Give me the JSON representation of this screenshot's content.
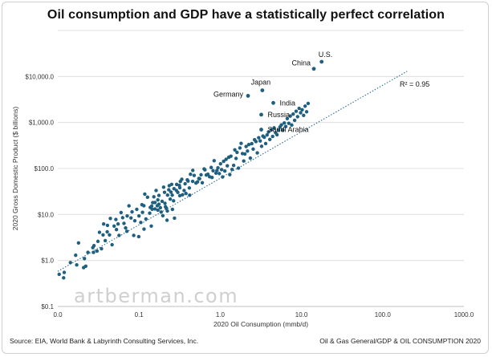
{
  "chart_data": {
    "type": "scatter",
    "title": "Oil consumption and GDP have a statistically perfect correlation",
    "xlabel": "2020 Oil Consumption (mmb/d)",
    "ylabel": "2020 Gross Domestic Product ($ billions)",
    "x_scale": "log",
    "y_scale": "log",
    "xlim": [
      0.01,
      1000
    ],
    "ylim": [
      0.1,
      100000
    ],
    "x_ticks": [
      "0.0",
      "0.1",
      "1.0",
      "10.0",
      "100.0",
      "1000.0"
    ],
    "y_ticks": [
      "$0.1",
      "$1.0",
      "$10.0",
      "$100.0",
      "$1,000.0",
      "$10,000.0"
    ],
    "grid": "horizontal",
    "marker_color": "#1f5f7f",
    "trendline": {
      "style": "dotted",
      "color": "#2a6f8f",
      "x": [
        0.01,
        200
      ],
      "y": [
        0.58,
        13000
      ]
    },
    "r_squared_label": "R² = 0.95",
    "labeled_points": [
      {
        "label": "U.S.",
        "x": 17.7,
        "y": 20900
      },
      {
        "label": "China",
        "x": 14.2,
        "y": 14700
      },
      {
        "label": "Japan",
        "x": 3.3,
        "y": 5000
      },
      {
        "label": "Germany",
        "x": 2.2,
        "y": 3800
      },
      {
        "label": "India",
        "x": 4.5,
        "y": 2660
      },
      {
        "label": "Russia",
        "x": 3.2,
        "y": 1480
      },
      {
        "label": "Saudi Arabia",
        "x": 3.2,
        "y": 700
      }
    ],
    "points": [
      [
        0.0104,
        0.5
      ],
      [
        0.0118,
        0.42
      ],
      [
        0.012,
        0.55
      ],
      [
        0.0143,
        0.9
      ],
      [
        0.0166,
        1.3
      ],
      [
        0.0171,
        0.8
      ],
      [
        0.018,
        2.4
      ],
      [
        0.0208,
        0.7
      ],
      [
        0.0213,
        1.1
      ],
      [
        0.0221,
        0.75
      ],
      [
        0.0235,
        1.5
      ],
      [
        0.027,
        1.9
      ],
      [
        0.0279,
        2.1
      ],
      [
        0.0275,
        1.5
      ],
      [
        0.0304,
        1.6
      ],
      [
        0.0312,
        2.6
      ],
      [
        0.0326,
        4.1
      ],
      [
        0.0345,
        1.8
      ],
      [
        0.0361,
        3.6
      ],
      [
        0.0367,
        6.2
      ],
      [
        0.0384,
        2.7
      ],
      [
        0.0409,
        5.8
      ],
      [
        0.0406,
        4.2
      ],
      [
        0.0433,
        3.6
      ],
      [
        0.0444,
        8.2
      ],
      [
        0.0466,
        2.2
      ],
      [
        0.0494,
        5.6
      ],
      [
        0.0519,
        7.8
      ],
      [
        0.0528,
        4.7
      ],
      [
        0.0552,
        6.2
      ],
      [
        0.0568,
        3.5
      ],
      [
        0.0601,
        11
      ],
      [
        0.0629,
        8.5
      ],
      [
        0.0653,
        6.4
      ],
      [
        0.0684,
        5.1
      ],
      [
        0.0715,
        9.3
      ],
      [
        0.0709,
        4.3
      ],
      [
        0.0752,
        15.4
      ],
      [
        0.0797,
        8.4
      ],
      [
        0.0821,
        11.4
      ],
      [
        0.0861,
        3.5
      ],
      [
        0.0888,
        7.3
      ],
      [
        0.0939,
        12.9
      ],
      [
        0.0992,
        3.3
      ],
      [
        0.0999,
        9.3
      ],
      [
        0.1052,
        6.7
      ],
      [
        0.1087,
        16.3
      ],
      [
        0.1105,
        11.1
      ],
      [
        0.1148,
        15.5
      ],
      [
        0.1153,
        4.8
      ],
      [
        0.1178,
        27.7
      ],
      [
        0.1217,
        8
      ],
      [
        0.1273,
        23.7
      ],
      [
        0.1354,
        10.7
      ],
      [
        0.1376,
        14.2
      ],
      [
        0.1432,
        15.2
      ],
      [
        0.1416,
        5.6
      ],
      [
        0.1453,
        13
      ],
      [
        0.1475,
        18.1
      ],
      [
        0.1523,
        24.2
      ],
      [
        0.1573,
        13.2
      ],
      [
        0.1573,
        18.2
      ],
      [
        0.1624,
        33.2
      ],
      [
        0.1679,
        15.5
      ],
      [
        0.1707,
        20.7
      ],
      [
        0.1707,
        12.4
      ],
      [
        0.1759,
        16.7
      ],
      [
        0.1759,
        26
      ],
      [
        0.1831,
        14
      ],
      [
        0.1871,
        11.3
      ],
      [
        0.1925,
        19.3
      ],
      [
        0.1964,
        9.4
      ],
      [
        0.2009,
        39.2
      ],
      [
        0.2062,
        30.3
      ],
      [
        0.2086,
        17.5
      ],
      [
        0.2119,
        14.7
      ],
      [
        0.2163,
        13.8
      ],
      [
        0.2212,
        7.5
      ],
      [
        0.2233,
        11.9
      ],
      [
        0.2248,
        26.4
      ],
      [
        0.2326,
        34.4
      ],
      [
        0.2355,
        42.2
      ],
      [
        0.2423,
        21.6
      ],
      [
        0.2474,
        30.7
      ],
      [
        0.2524,
        45.2
      ],
      [
        0.2563,
        26.3
      ],
      [
        0.2579,
        12.9
      ],
      [
        0.2663,
        19.8
      ],
      [
        0.2697,
        36.4
      ],
      [
        0.2734,
        8.3
      ],
      [
        0.2888,
        33.2
      ],
      [
        0.2906,
        45
      ],
      [
        0.3003,
        30.2
      ],
      [
        0.3137,
        42.8
      ],
      [
        0.3178,
        25.6
      ],
      [
        0.3181,
        38.2
      ],
      [
        0.3229,
        52.3
      ],
      [
        0.3364,
        58.2
      ],
      [
        0.3433,
        26.8
      ],
      [
        0.3592,
        33.2
      ],
      [
        0.3693,
        46.6
      ],
      [
        0.3785,
        28.6
      ],
      [
        0.3933,
        56.6
      ],
      [
        0.4014,
        53.3
      ],
      [
        0.4164,
        37.7
      ],
      [
        0.4204,
        26.2
      ],
      [
        0.4305,
        74.9
      ],
      [
        0.4577,
        52.5
      ],
      [
        0.4597,
        90.9
      ],
      [
        0.4773,
        70.6
      ],
      [
        0.5027,
        48.2
      ],
      [
        0.5259,
        51.2
      ],
      [
        0.5457,
        60.7
      ],
      [
        0.5569,
        59.9
      ],
      [
        0.5809,
        72.9
      ],
      [
        0.6014,
        48.9
      ],
      [
        0.6337,
        97.7
      ],
      [
        0.6474,
        93.3
      ],
      [
        0.6731,
        71.9
      ],
      [
        0.7049,
        74.8
      ],
      [
        0.7382,
        66.2
      ],
      [
        0.7743,
        105.1
      ],
      [
        0.7929,
        63.8
      ],
      [
        0.8168,
        89.4
      ],
      [
        0.8411,
        147.7
      ],
      [
        0.8862,
        79
      ],
      [
        0.9108,
        89.7
      ],
      [
        0.9368,
        103.2
      ],
      [
        0.9745,
        77.4
      ],
      [
        1.0089,
        126.4
      ],
      [
        1.0395,
        94.5
      ],
      [
        1.0703,
        65.4
      ],
      [
        1.1013,
        143.4
      ],
      [
        1.1397,
        87.9
      ],
      [
        1.1798,
        158.3
      ],
      [
        1.2216,
        114.4
      ],
      [
        1.2736,
        175.4
      ],
      [
        1.3118,
        73.6
      ],
      [
        1.3538,
        185.3
      ],
      [
        1.3992,
        95.4
      ],
      [
        1.4629,
        116.6
      ],
      [
        1.5132,
        253.5
      ],
      [
        1.5671,
        165.2
      ],
      [
        1.6106,
        223.6
      ],
      [
        1.6748,
        101.7
      ],
      [
        1.7468,
        278.7
      ],
      [
        1.8085,
        351.2
      ],
      [
        1.8773,
        210.9
      ],
      [
        1.9475,
        145.2
      ],
      [
        2.0119,
        206.8
      ],
      [
        2.0817,
        300.2
      ],
      [
        2.1652,
        239.1
      ],
      [
        2.2475,
        330.9
      ],
      [
        2.3465,
        167.8
      ],
      [
        2.4464,
        346.6
      ],
      [
        2.5446,
        263.7
      ],
      [
        2.6466,
        421.9
      ],
      [
        2.7522,
        384.3
      ],
      [
        2.8584,
        218.1
      ],
      [
        2.977,
        466.4
      ],
      [
        3.1048,
        396.5
      ],
      [
        3.2313,
        303.3
      ],
      [
        3.3539,
        506.2
      ],
      [
        3.4832,
        478.5
      ],
      [
        3.6257,
        348.1
      ],
      [
        3.7749,
        536.9
      ],
      [
        3.9284,
        623.5
      ],
      [
        4.0802,
        427.1
      ],
      [
        4.2544,
        696.2
      ],
      [
        4.4204,
        497.4
      ],
      [
        4.6071,
        764.3
      ],
      [
        4.8077,
        597.6
      ],
      [
        5.0022,
        540.1
      ],
      [
        5.2046,
        689.2
      ],
      [
        5.4291,
        798.2
      ],
      [
        5.6633,
        885.8
      ],
      [
        5.9007,
        683.4
      ],
      [
        6.1456,
        972.7
      ],
      [
        6.4078,
        816.2
      ],
      [
        6.6879,
        1215.7
      ],
      [
        6.9805,
        961.4
      ],
      [
        7.2801,
        1377.1
      ],
      [
        7.5845,
        880.5
      ],
      [
        7.9074,
        1524.2
      ],
      [
        8.2445,
        1115.5
      ],
      [
        8.6025,
        1750.6
      ],
      [
        8.9624,
        1337.1
      ],
      [
        9.3604,
        2031.1
      ],
      [
        9.7652,
        1624.4
      ],
      [
        10.1955,
        1886.2
      ],
      [
        10.6328,
        1425.7
      ],
      [
        11.0925,
        2262.7
      ],
      [
        11.5823,
        1709.4
      ],
      [
        12.0849,
        2598.1
      ]
    ]
  },
  "footer": {
    "source": "Source: EIA, World Bank & Labyrinth Consulting Services, Inc.",
    "category": "Oil & Gas General/GDP & OIL CONSUMPTION 2020"
  },
  "watermark": "artberman.com"
}
